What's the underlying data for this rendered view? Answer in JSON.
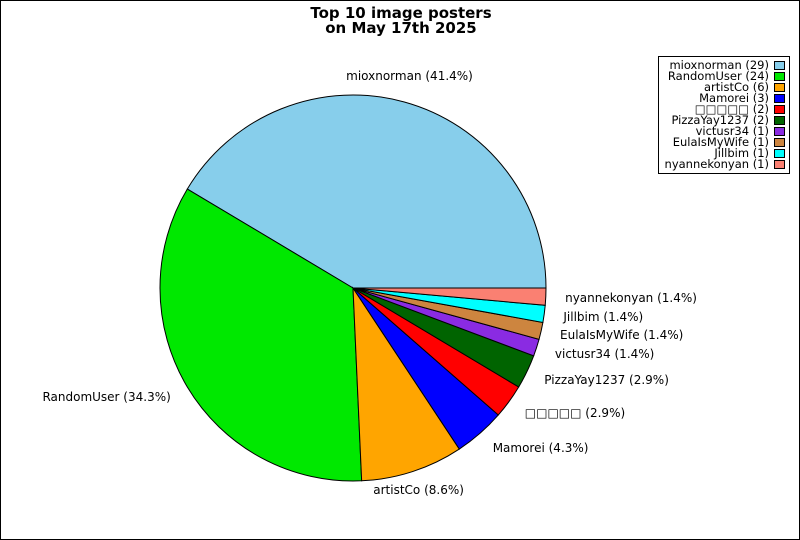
{
  "figure": {
    "background": "#ffffff",
    "border_color": "#000000",
    "title_line1": "Top 10 image posters",
    "title_line2": "on May 17th 2025"
  },
  "chart_data": {
    "type": "pie",
    "title": "Top 10 image posters on May 17th 2025",
    "start_angle_deg": 0,
    "direction": "counterclockwise",
    "edge_color": "#000000",
    "legend_position": "upper right",
    "slices": [
      {
        "label": "mioxnorman",
        "count": 29,
        "percent": 41.4,
        "color": "#87CEEB",
        "pie_label": "mioxnorman (41.4%)",
        "legend_label": "mioxnorman (29)"
      },
      {
        "label": "RandomUser",
        "count": 24,
        "percent": 34.3,
        "color": "#00E800",
        "pie_label": "RandomUser (34.3%)",
        "legend_label": "RandomUser (24)"
      },
      {
        "label": "artistCo",
        "count": 6,
        "percent": 8.6,
        "color": "#FFA500",
        "pie_label": "artistCo (8.6%)",
        "legend_label": "artistCo (6)"
      },
      {
        "label": "Mamorei",
        "count": 3,
        "percent": 4.3,
        "color": "#0000FF",
        "pie_label": "Mamorei (4.3%)",
        "legend_label": "Mamorei (3)"
      },
      {
        "label": "□□□□□",
        "count": 2,
        "percent": 2.9,
        "color": "#FF0000",
        "pie_label": "□□□□□ (2.9%)",
        "legend_label": "□□□□□ (2)"
      },
      {
        "label": "PizzaYay1237",
        "count": 2,
        "percent": 2.9,
        "color": "#006400",
        "pie_label": "PizzaYay1237 (2.9%)",
        "legend_label": "PizzaYay1237 (2)"
      },
      {
        "label": "victusr34",
        "count": 1,
        "percent": 1.4,
        "color": "#8A2BE2",
        "pie_label": "victusr34 (1.4%)",
        "legend_label": "victusr34 (1)"
      },
      {
        "label": "EulaIsMyWife",
        "count": 1,
        "percent": 1.4,
        "color": "#CD853F",
        "pie_label": "EulaIsMyWife (1.4%)",
        "legend_label": "EulaIsMyWife (1)"
      },
      {
        "label": "Jillbim",
        "count": 1,
        "percent": 1.4,
        "color": "#00FFFF",
        "pie_label": "Jillbim (1.4%)",
        "legend_label": "Jillbim (1)"
      },
      {
        "label": "nyannekonyan",
        "count": 1,
        "percent": 1.4,
        "color": "#FA8072",
        "pie_label": "nyannekonyan (1.4%)",
        "legend_label": "nyannekonyan (1)"
      }
    ]
  }
}
